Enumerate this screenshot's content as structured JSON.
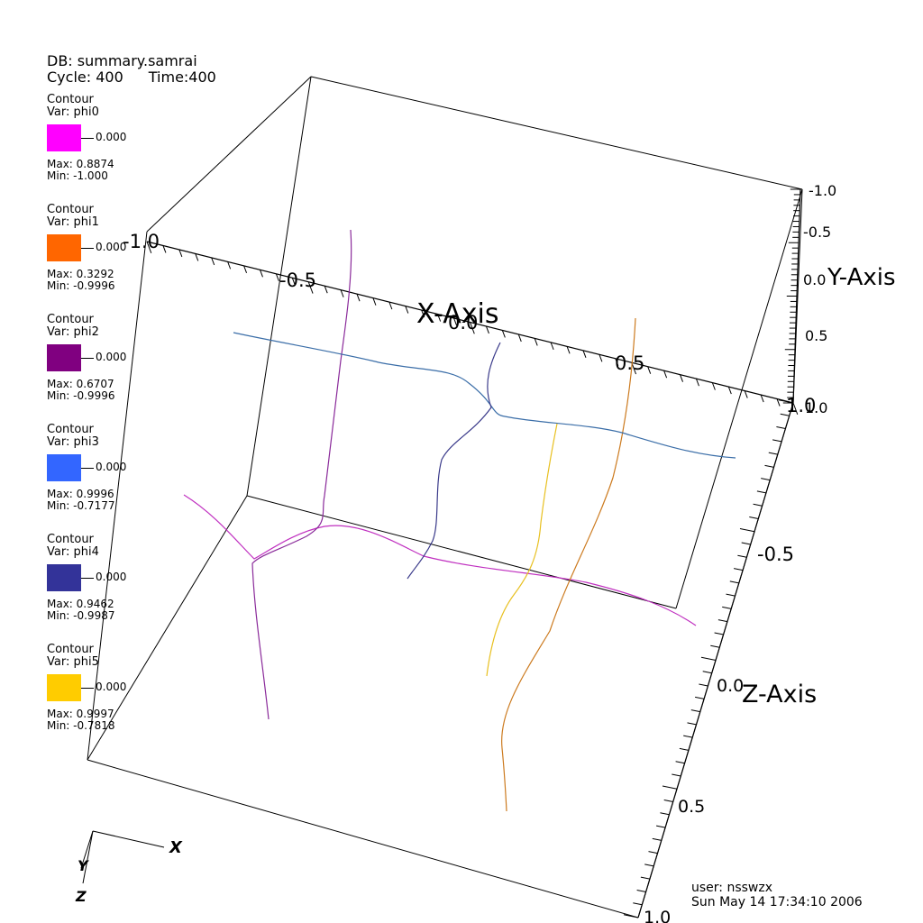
{
  "header": {
    "db": "DB: summary.samrai",
    "cycle": "Cycle: 400",
    "time": "Time:400"
  },
  "legend": [
    {
      "title": "Contour",
      "var": "Var: phi0",
      "color": "#ff00ff",
      "level": "0.000",
      "max": "Max:  0.8874",
      "min": "Min: -1.000"
    },
    {
      "title": "Contour",
      "var": "Var: phi1",
      "color": "#ff6600",
      "level": "0.000",
      "max": "Max:  0.3292",
      "min": "Min: -0.9996"
    },
    {
      "title": "Contour",
      "var": "Var: phi2",
      "color": "#800080",
      "level": "0.000",
      "max": "Max:  0.6707",
      "min": "Min: -0.9996"
    },
    {
      "title": "Contour",
      "var": "Var: phi3",
      "color": "#3366ff",
      "level": "0.000",
      "max": "Max:  0.9996",
      "min": "Min: -0.7177"
    },
    {
      "title": "Contour",
      "var": "Var: phi4",
      "color": "#333399",
      "level": "0.000",
      "max": "Max:  0.9462",
      "min": "Min: -0.9987"
    },
    {
      "title": "Contour",
      "var": "Var: phi5",
      "color": "#ffcc00",
      "level": "0.000",
      "max": "Max:  0.9997",
      "min": "Min: -0.7818"
    }
  ],
  "axes": {
    "x": {
      "title": "X-Axis",
      "ticks": [
        "-1.0",
        "-0.5",
        "0.0",
        "0.5",
        "1.0"
      ]
    },
    "y": {
      "title": "Y-Axis",
      "ticks": [
        "-1.0",
        "-0.5",
        "0.0",
        "0.5",
        "1.0"
      ]
    },
    "z": {
      "title": "Z-Axis",
      "ticks": [
        "-0.5",
        "0.0",
        "0.5",
        "1.0"
      ]
    }
  },
  "triad": {
    "x": "X",
    "y": "Y",
    "z": "Z"
  },
  "curves": [
    {
      "name": "phi0",
      "color": "#c030c0"
    },
    {
      "name": "phi1",
      "color": "#cc7a1e"
    },
    {
      "name": "phi2",
      "color": "#8a2a9a"
    },
    {
      "name": "phi3",
      "color": "#3b6ea8"
    },
    {
      "name": "phi4",
      "color": "#3a3a8a"
    },
    {
      "name": "phi5",
      "color": "#e8c020"
    }
  ],
  "footer": {
    "user": "user: nsswzx",
    "date": "Sun May 14 17:34:10 2006"
  }
}
